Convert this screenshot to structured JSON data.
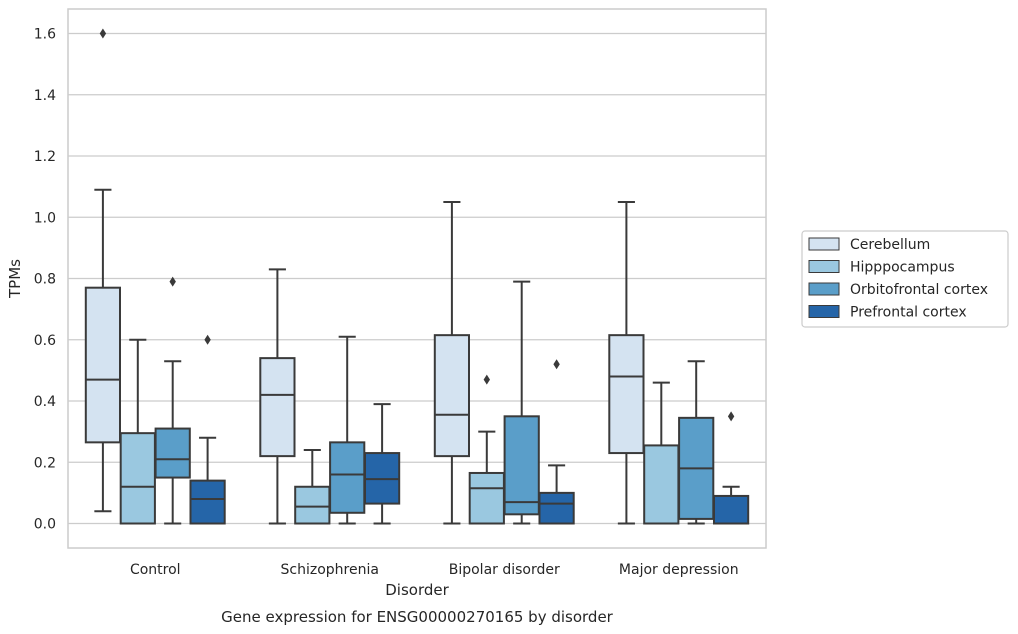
{
  "chart_data": {
    "type": "box",
    "title": "",
    "caption": "Gene expression for ENSG00000270165 by disorder",
    "xlabel": "Disorder",
    "ylabel": "TPMs",
    "ylim": [
      -0.08,
      1.68
    ],
    "yticks": [
      0.0,
      0.2,
      0.4,
      0.6,
      0.8,
      1.0,
      1.2,
      1.4,
      1.6
    ],
    "ytick_labels": [
      "0.0",
      "0.2",
      "0.4",
      "0.6",
      "0.8",
      "1.0",
      "1.2",
      "1.4",
      "1.6"
    ],
    "grid": "horizontal",
    "legend_position": "right",
    "categories": [
      "Control",
      "Schizophrenia",
      "Bipolar disorder",
      "Major depression"
    ],
    "series": [
      {
        "name": "Cerebellum",
        "color": "#d4e3f1",
        "boxes": [
          {
            "whislo": 0.04,
            "q1": 0.265,
            "med": 0.47,
            "q3": 0.77,
            "whishi": 1.09,
            "fliers": [
              1.6
            ]
          },
          {
            "whislo": 0.0,
            "q1": 0.22,
            "med": 0.42,
            "q3": 0.54,
            "whishi": 0.83,
            "fliers": []
          },
          {
            "whislo": 0.0,
            "q1": 0.22,
            "med": 0.355,
            "q3": 0.615,
            "whishi": 1.05,
            "fliers": []
          },
          {
            "whislo": 0.0,
            "q1": 0.23,
            "med": 0.48,
            "q3": 0.615,
            "whishi": 1.05,
            "fliers": []
          }
        ]
      },
      {
        "name": "Hipppocampus",
        "color": "#9ac8e0",
        "boxes": [
          {
            "whislo": 0.0,
            "q1": 0.0,
            "med": 0.12,
            "q3": 0.295,
            "whishi": 0.6,
            "fliers": []
          },
          {
            "whislo": 0.0,
            "q1": 0.0,
            "med": 0.055,
            "q3": 0.12,
            "whishi": 0.24,
            "fliers": []
          },
          {
            "whislo": 0.0,
            "q1": 0.0,
            "med": 0.115,
            "q3": 0.165,
            "whishi": 0.3,
            "fliers": [
              0.47
            ]
          },
          {
            "whislo": 0.0,
            "q1": 0.0,
            "med": 0.0,
            "q3": 0.255,
            "whishi": 0.46,
            "fliers": []
          }
        ]
      },
      {
        "name": "Orbitofrontal cortex",
        "color": "#5a9ec9",
        "boxes": [
          {
            "whislo": 0.0,
            "q1": 0.15,
            "med": 0.21,
            "q3": 0.31,
            "whishi": 0.53,
            "fliers": [
              0.79
            ]
          },
          {
            "whislo": 0.0,
            "q1": 0.035,
            "med": 0.16,
            "q3": 0.265,
            "whishi": 0.61,
            "fliers": []
          },
          {
            "whislo": 0.0,
            "q1": 0.03,
            "med": 0.07,
            "q3": 0.35,
            "whishi": 0.79,
            "fliers": []
          },
          {
            "whislo": 0.0,
            "q1": 0.015,
            "med": 0.18,
            "q3": 0.345,
            "whishi": 0.53,
            "fliers": []
          }
        ]
      },
      {
        "name": "Prefrontal cortex",
        "color": "#2565a8",
        "boxes": [
          {
            "whislo": 0.0,
            "q1": 0.0,
            "med": 0.08,
            "q3": 0.14,
            "whishi": 0.28,
            "fliers": [
              0.6
            ]
          },
          {
            "whislo": 0.0,
            "q1": 0.065,
            "med": 0.145,
            "q3": 0.23,
            "whishi": 0.39,
            "fliers": []
          },
          {
            "whislo": 0.0,
            "q1": 0.0,
            "med": 0.065,
            "q3": 0.1,
            "whishi": 0.19,
            "fliers": [
              0.52
            ]
          },
          {
            "whislo": 0.0,
            "q1": 0.0,
            "med": 0.0,
            "q3": 0.09,
            "whishi": 0.12,
            "fliers": [
              0.35
            ]
          }
        ]
      }
    ]
  }
}
